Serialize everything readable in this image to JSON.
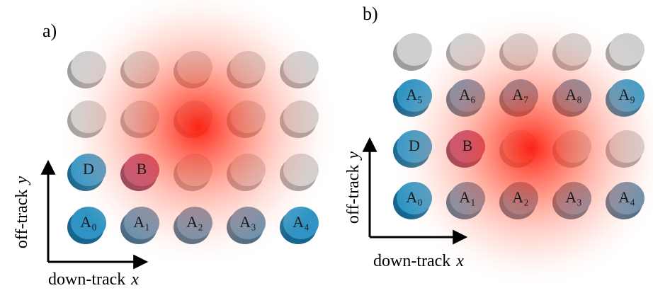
{
  "panels": [
    {
      "tag": "a)",
      "cells": [
        "D",
        "B",
        "A₀",
        "A₁",
        "A₂",
        "A₃",
        "A₄"
      ],
      "x_axis": {
        "text": "down-track",
        "var": "x"
      },
      "y_axis": {
        "text": "off-track",
        "var": "y"
      }
    },
    {
      "tag": "b)",
      "cells": [
        "A₅",
        "A₆",
        "A₇",
        "A₈",
        "A₉",
        "D",
        "B",
        "A₀",
        "A₁",
        "A₂",
        "A₃",
        "A₄"
      ],
      "x_axis": {
        "text": "down-track",
        "var": "x"
      },
      "y_axis": {
        "text": "off-track",
        "var": "y"
      }
    }
  ]
}
